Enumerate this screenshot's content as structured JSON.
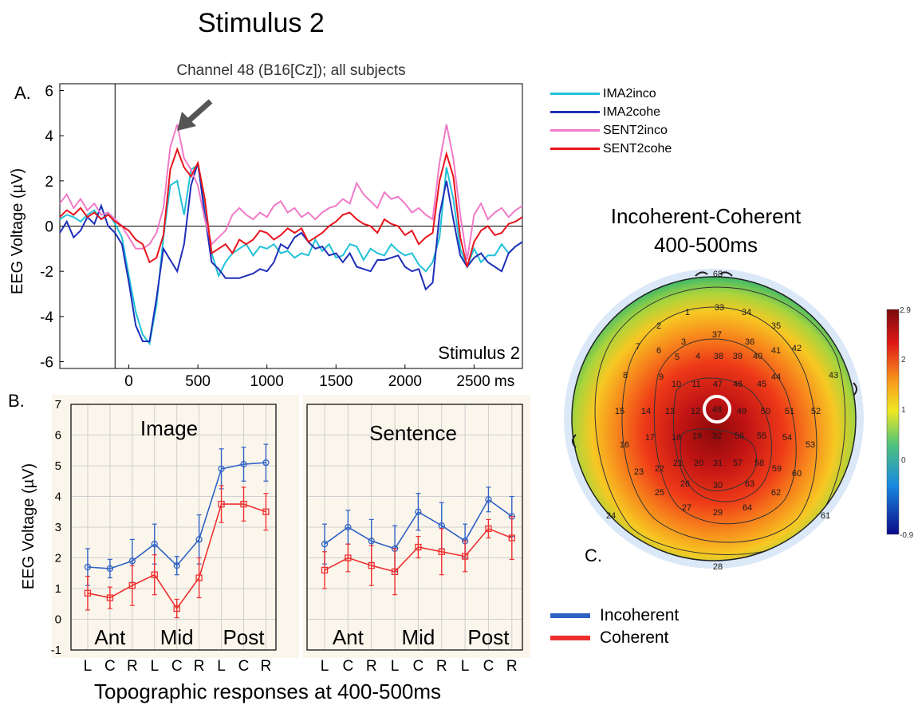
{
  "figure": {
    "main_title": "Stimulus 2",
    "panel_a_label": "A.",
    "panel_b_label": "B.",
    "panel_c_label": "C.",
    "bottom_caption": "Topographic responses at 400-500ms"
  },
  "colors": {
    "IMA2inco": "#22c1d8",
    "IMA2cohe": "#1e2fb8",
    "SENT2inco": "#f07ac8",
    "SENT2cohe": "#e8141c",
    "incoherent": "#2f62c4",
    "coherent": "#ee3030"
  },
  "chart_data": [
    {
      "id": "erp",
      "type": "line",
      "title": "Channel 48 (B16[Cz]); all subjects",
      "ylabel": "EEG Voltage (µV)",
      "xlabel": "",
      "x_unit_label": "ms",
      "annotation": "Stimulus 2",
      "xlim": [
        -500,
        2850
      ],
      "ylim": [
        -6.3,
        6.3
      ],
      "xticks": [
        0,
        500,
        1000,
        1500,
        2000,
        2500
      ],
      "xtick_labels": [
        "0",
        "500",
        "1000",
        "1500",
        "2000",
        "2500 ms"
      ],
      "yticks": [
        -6,
        -4,
        -2,
        0,
        2,
        4,
        6
      ],
      "ytick_labels": [
        "-6",
        "-4",
        "-2",
        "0",
        "2",
        "4",
        "6"
      ],
      "stimulus_onset": -100,
      "legend_position": "right, outside",
      "series": [
        {
          "name": "IMA2inco",
          "key": "IMA2inco",
          "x": [
            -500,
            -450,
            -400,
            -350,
            -300,
            -250,
            -200,
            -150,
            -100,
            -50,
            0,
            50,
            100,
            150,
            200,
            250,
            300,
            350,
            400,
            450,
            500,
            550,
            600,
            650,
            700,
            750,
            800,
            850,
            900,
            950,
            1000,
            1050,
            1100,
            1150,
            1200,
            1250,
            1300,
            1350,
            1400,
            1450,
            1500,
            1550,
            1600,
            1650,
            1700,
            1750,
            1800,
            1850,
            1900,
            1950,
            2000,
            2050,
            2100,
            2150,
            2200,
            2250,
            2300,
            2350,
            2400,
            2450,
            2500,
            2550,
            2600,
            2650,
            2700,
            2750,
            2800,
            2850
          ],
          "y": [
            0.3,
            0.5,
            0.4,
            0.2,
            0.5,
            0.7,
            0.3,
            0.6,
            0.1,
            -0.5,
            -2.2,
            -3.8,
            -4.8,
            -5.2,
            -3.5,
            -0.5,
            1.8,
            2.0,
            0.5,
            2.5,
            2.7,
            1.0,
            -1.2,
            -2.2,
            -1.6,
            -1.2,
            -1.0,
            -0.8,
            -1.3,
            -0.9,
            -1.0,
            -0.8,
            -1.2,
            -1.1,
            -1.4,
            -1.2,
            -1.3,
            -0.6,
            -1.1,
            -0.8,
            -1.4,
            -1.3,
            -0.8,
            -0.9,
            -1.5,
            -1.0,
            -1.2,
            -1.3,
            -0.8,
            -1.1,
            -1.3,
            -1.2,
            -1.7,
            -2.0,
            -1.6,
            -0.5,
            2.6,
            1.2,
            -1.0,
            -1.8,
            -1.0,
            -1.6,
            -1.3,
            -1.3,
            -0.8,
            -1.2,
            -0.9,
            -0.7
          ]
        },
        {
          "name": "IMA2cohe",
          "key": "IMA2cohe",
          "x": [
            -500,
            -450,
            -400,
            -350,
            -300,
            -250,
            -200,
            -150,
            -100,
            -50,
            0,
            50,
            100,
            150,
            200,
            250,
            300,
            350,
            400,
            450,
            500,
            550,
            600,
            650,
            700,
            750,
            800,
            850,
            900,
            950,
            1000,
            1050,
            1100,
            1150,
            1200,
            1250,
            1300,
            1350,
            1400,
            1450,
            1500,
            1550,
            1600,
            1650,
            1700,
            1750,
            1800,
            1850,
            1900,
            1950,
            2000,
            2050,
            2100,
            2150,
            2200,
            2250,
            2300,
            2350,
            2400,
            2450,
            2500,
            2550,
            2600,
            2650,
            2700,
            2750,
            2800,
            2850
          ],
          "y": [
            -0.3,
            0.2,
            -0.5,
            -0.2,
            0.4,
            0.1,
            0.9,
            0.0,
            -0.3,
            -0.8,
            -2.5,
            -4.4,
            -5.1,
            -5.1,
            -3.2,
            -1.0,
            -1.5,
            -2.0,
            -0.8,
            1.8,
            2.8,
            0.5,
            -1.6,
            -1.9,
            -2.3,
            -2.3,
            -2.3,
            -2.2,
            -2.1,
            -1.9,
            -2.0,
            -1.6,
            -0.8,
            -1.0,
            -0.5,
            -0.3,
            -0.7,
            -1.0,
            -0.9,
            -1.3,
            -1.2,
            -1.6,
            -1.2,
            -1.8,
            -1.9,
            -2.0,
            -1.5,
            -1.5,
            -1.4,
            -1.3,
            -1.8,
            -2.0,
            -1.9,
            -2.8,
            -2.5,
            0.5,
            2.0,
            0.3,
            -1.3,
            -1.8,
            -1.4,
            -1.2,
            -1.6,
            -1.8,
            -2.0,
            -1.2,
            -0.9,
            -0.7
          ]
        },
        {
          "name": "SENT2inco",
          "key": "SENT2inco",
          "x": [
            -500,
            -450,
            -400,
            -350,
            -300,
            -250,
            -200,
            -150,
            -100,
            -50,
            0,
            50,
            100,
            150,
            200,
            250,
            300,
            350,
            400,
            450,
            500,
            550,
            600,
            650,
            700,
            750,
            800,
            850,
            900,
            950,
            1000,
            1050,
            1100,
            1150,
            1200,
            1250,
            1300,
            1350,
            1400,
            1450,
            1500,
            1550,
            1600,
            1650,
            1700,
            1750,
            1800,
            1850,
            1900,
            1950,
            2000,
            2050,
            2100,
            2150,
            2200,
            2250,
            2300,
            2350,
            2400,
            2450,
            2500,
            2550,
            2600,
            2650,
            2700,
            2750,
            2800,
            2850
          ],
          "y": [
            1.0,
            1.4,
            0.8,
            1.2,
            0.7,
            1.0,
            0.5,
            0.6,
            0.3,
            0.0,
            -0.5,
            -1.0,
            -1.0,
            -0.8,
            -0.3,
            0.8,
            3.5,
            4.5,
            3.0,
            2.5,
            1.8,
            0.3,
            -0.8,
            -0.5,
            -0.2,
            0.5,
            0.8,
            0.5,
            0.3,
            0.6,
            0.4,
            0.9,
            1.1,
            0.6,
            0.8,
            0.4,
            0.6,
            0.3,
            0.6,
            0.8,
            0.9,
            1.2,
            1.0,
            1.9,
            1.4,
            1.1,
            0.8,
            1.5,
            1.2,
            1.3,
            1.0,
            0.6,
            0.8,
            0.5,
            0.3,
            2.8,
            4.5,
            3.0,
            0.5,
            -1.5,
            0.5,
            1.0,
            0.3,
            0.6,
            0.8,
            0.4,
            0.7,
            0.9
          ]
        },
        {
          "name": "SENT2cohe",
          "key": "SENT2cohe",
          "x": [
            -500,
            -450,
            -400,
            -350,
            -300,
            -250,
            -200,
            -150,
            -100,
            -50,
            0,
            50,
            100,
            150,
            200,
            250,
            300,
            350,
            400,
            450,
            500,
            550,
            600,
            650,
            700,
            750,
            800,
            850,
            900,
            950,
            1000,
            1050,
            1100,
            1150,
            1200,
            1250,
            1300,
            1350,
            1400,
            1450,
            1500,
            1550,
            1600,
            1650,
            1700,
            1750,
            1800,
            1850,
            1900,
            1950,
            2000,
            2050,
            2100,
            2150,
            2200,
            2250,
            2300,
            2350,
            2400,
            2450,
            2500,
            2550,
            2600,
            2650,
            2700,
            2750,
            2800,
            2850
          ],
          "y": [
            0.4,
            0.7,
            0.5,
            0.8,
            0.4,
            0.6,
            0.3,
            0.5,
            0.2,
            0.0,
            -0.2,
            -0.6,
            -0.8,
            -1.6,
            -1.4,
            -0.4,
            2.5,
            3.4,
            2.6,
            2.2,
            2.8,
            1.2,
            -1.2,
            -1.0,
            -0.8,
            -1.2,
            -0.6,
            -0.8,
            -0.6,
            -0.2,
            -0.3,
            -0.6,
            -0.4,
            -0.1,
            -0.3,
            -0.1,
            -0.7,
            -0.5,
            -0.3,
            0.0,
            0.2,
            0.5,
            0.6,
            0.3,
            0.1,
            0.0,
            -0.3,
            0.3,
            0.1,
            0.0,
            -0.4,
            -0.2,
            -0.8,
            -0.5,
            -0.3,
            2.0,
            3.2,
            2.2,
            -0.5,
            -1.8,
            -0.7,
            -0.2,
            0.0,
            -0.4,
            -0.3,
            0.1,
            0.2,
            0.4
          ]
        }
      ]
    },
    {
      "id": "image",
      "type": "line",
      "title": "Image",
      "ylabel": "EEG Voltage (µV)",
      "ylim": [
        -1,
        7
      ],
      "yticks": [
        -1,
        0,
        1,
        2,
        3,
        4,
        5,
        6,
        7
      ],
      "categories": [
        "L",
        "C",
        "R",
        "L",
        "C",
        "R",
        "L",
        "C",
        "R"
      ],
      "groups": [
        "Ant",
        "Mid",
        "Post"
      ],
      "grid": true,
      "series": [
        {
          "name": "Incoherent",
          "values": [
            1.7,
            1.65,
            1.9,
            2.45,
            1.75,
            2.6,
            4.9,
            5.05,
            5.1
          ],
          "err": [
            0.6,
            0.3,
            0.7,
            0.65,
            0.3,
            0.8,
            0.65,
            0.55,
            0.6
          ]
        },
        {
          "name": "Coherent",
          "values": [
            0.85,
            0.7,
            1.1,
            1.45,
            0.35,
            1.35,
            3.75,
            3.75,
            3.5
          ],
          "err": [
            0.55,
            0.35,
            0.65,
            0.65,
            0.3,
            0.65,
            0.6,
            0.55,
            0.6
          ]
        }
      ]
    },
    {
      "id": "sentence",
      "type": "line",
      "title": "Sentence",
      "ylim": [
        -1,
        7
      ],
      "categories": [
        "L",
        "C",
        "R",
        "L",
        "C",
        "R",
        "L",
        "C",
        "R"
      ],
      "groups": [
        "Ant",
        "Mid",
        "Post"
      ],
      "grid": true,
      "series": [
        {
          "name": "Incoherent",
          "values": [
            2.45,
            3.0,
            2.55,
            2.3,
            3.5,
            3.05,
            2.55,
            3.9,
            3.35
          ],
          "err": [
            0.65,
            0.55,
            0.7,
            0.75,
            0.6,
            0.75,
            0.55,
            0.4,
            0.65
          ]
        },
        {
          "name": "Coherent",
          "values": [
            1.6,
            2.0,
            1.75,
            1.55,
            2.35,
            2.2,
            2.05,
            2.95,
            2.65
          ],
          "err": [
            0.6,
            0.45,
            0.65,
            0.75,
            0.35,
            0.75,
            0.5,
            0.3,
            0.7
          ]
        }
      ]
    }
  ],
  "legend_b": {
    "items": [
      {
        "label": "Incoherent",
        "key": "incoherent"
      },
      {
        "label": "Coherent",
        "key": "coherent"
      }
    ]
  },
  "topomap": {
    "title_line1": "Incoherent-Coherent",
    "title_line2": "400-500ms",
    "highlighted_electrode": "48",
    "colorbar_max": "2.9",
    "colorbar_ticks": [
      "2",
      "1",
      "0",
      "-0.9"
    ],
    "electrodes": [
      {
        "n": "68"
      },
      {
        "n": "33"
      },
      {
        "n": "34"
      },
      {
        "n": "1"
      },
      {
        "n": "2"
      },
      {
        "n": "35"
      },
      {
        "n": "37"
      },
      {
        "n": "36"
      },
      {
        "n": "3"
      },
      {
        "n": "6"
      },
      {
        "n": "7"
      },
      {
        "n": "5"
      },
      {
        "n": "4"
      },
      {
        "n": "38"
      },
      {
        "n": "39"
      },
      {
        "n": "40"
      },
      {
        "n": "41"
      },
      {
        "n": "42"
      },
      {
        "n": "43"
      },
      {
        "n": "8"
      },
      {
        "n": "9"
      },
      {
        "n": "10"
      },
      {
        "n": "11"
      },
      {
        "n": "47"
      },
      {
        "n": "46"
      },
      {
        "n": "45"
      },
      {
        "n": "44"
      },
      {
        "n": "15"
      },
      {
        "n": "14"
      },
      {
        "n": "13"
      },
      {
        "n": "12"
      },
      {
        "n": "49"
      },
      {
        "n": "50"
      },
      {
        "n": "51"
      },
      {
        "n": "52"
      },
      {
        "n": "16"
      },
      {
        "n": "17"
      },
      {
        "n": "18"
      },
      {
        "n": "19"
      },
      {
        "n": "32"
      },
      {
        "n": "56"
      },
      {
        "n": "55"
      },
      {
        "n": "54"
      },
      {
        "n": "53"
      },
      {
        "n": "21"
      },
      {
        "n": "20"
      },
      {
        "n": "31"
      },
      {
        "n": "57"
      },
      {
        "n": "58"
      },
      {
        "n": "59"
      },
      {
        "n": "60"
      },
      {
        "n": "23"
      },
      {
        "n": "22"
      },
      {
        "n": "26"
      },
      {
        "n": "30"
      },
      {
        "n": "63"
      },
      {
        "n": "62"
      },
      {
        "n": "24"
      },
      {
        "n": "25"
      },
      {
        "n": "27"
      },
      {
        "n": "29"
      },
      {
        "n": "64"
      },
      {
        "n": "61"
      },
      {
        "n": "28"
      }
    ]
  }
}
